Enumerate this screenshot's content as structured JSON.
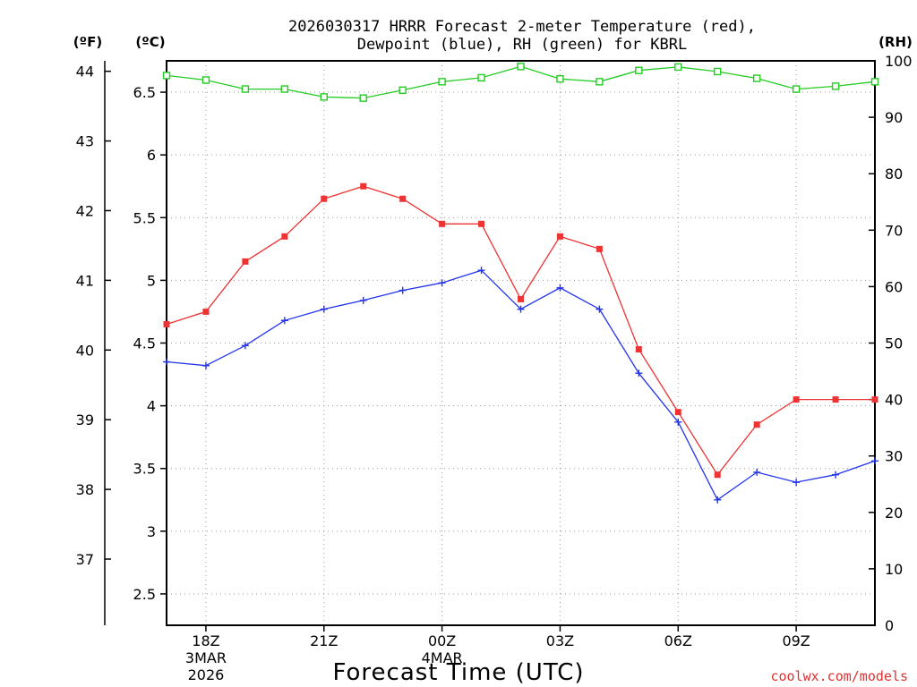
{
  "chart_data": {
    "type": "line",
    "title_lines": [
      "2026030317 HRRR Forecast 2-meter Temperature (red),",
      "Dewpoint (blue), RH (green) for KBRL"
    ],
    "xlabel": "Forecast Time (UTC)",
    "credit": "coolwx.com/models",
    "unit_labels": {
      "fahrenheit": "(ºF)",
      "celsius": "(ºC)",
      "rh": "(RH)"
    },
    "x_hours": [
      17,
      18,
      19,
      20,
      21,
      22,
      23,
      24,
      25,
      26,
      27,
      28,
      29,
      30,
      31,
      32,
      33,
      34,
      35
    ],
    "xlim": [
      17,
      35
    ],
    "x_ticks": [
      {
        "hour": 18,
        "label": "18Z",
        "sub1": "3MAR",
        "sub2": "2026"
      },
      {
        "hour": 21,
        "label": "21Z",
        "sub1": "",
        "sub2": ""
      },
      {
        "hour": 24,
        "label": "00Z",
        "sub1": "4MAR",
        "sub2": ""
      },
      {
        "hour": 27,
        "label": "03Z",
        "sub1": "",
        "sub2": ""
      },
      {
        "hour": 30,
        "label": "06Z",
        "sub1": "",
        "sub2": ""
      },
      {
        "hour": 33,
        "label": "09Z",
        "sub1": "",
        "sub2": ""
      }
    ],
    "celsius_axis": {
      "lim": [
        2.25,
        6.75
      ],
      "ticks": [
        2.5,
        3,
        3.5,
        4,
        4.5,
        5,
        5.5,
        6,
        6.5
      ],
      "tick_labels": [
        "2.5",
        "3",
        "3.5",
        "4",
        "4.5",
        "5",
        "5.5",
        "6",
        "6.5"
      ]
    },
    "fahrenheit_axis": {
      "ticks": [
        37,
        38,
        39,
        40,
        41,
        42,
        43,
        44
      ],
      "tick_labels": [
        "37",
        "38",
        "39",
        "40",
        "41",
        "42",
        "43",
        "44"
      ]
    },
    "rh_axis": {
      "lim": [
        0,
        100
      ],
      "ticks": [
        0,
        10,
        20,
        30,
        40,
        50,
        60,
        70,
        80,
        90,
        100
      ],
      "tick_labels": [
        "0",
        "10",
        "20",
        "30",
        "40",
        "50",
        "60",
        "70",
        "80",
        "90",
        "100"
      ]
    },
    "grid": true,
    "series": [
      {
        "name": "Temperature",
        "axis": "celsius",
        "color": "#ee3333",
        "marker": "filled-square",
        "values": [
          4.65,
          4.75,
          5.15,
          5.35,
          5.65,
          5.75,
          5.65,
          5.45,
          5.45,
          4.85,
          5.35,
          5.25,
          4.45,
          3.95,
          3.45,
          3.85,
          4.05,
          4.05,
          4.05
        ]
      },
      {
        "name": "Dewpoint",
        "axis": "celsius",
        "color": "#2233ee",
        "marker": "plus",
        "values": [
          4.35,
          4.32,
          4.48,
          4.68,
          4.77,
          4.84,
          4.92,
          4.98,
          5.08,
          4.77,
          4.94,
          4.77,
          4.26,
          3.87,
          3.25,
          3.47,
          3.39,
          3.45,
          3.56
        ]
      },
      {
        "name": "RH",
        "axis": "rh",
        "color": "#22cc22",
        "marker": "open-square",
        "values": [
          97.4,
          96.6,
          95.0,
          95.0,
          93.6,
          93.4,
          94.8,
          96.3,
          97.0,
          99.0,
          96.8,
          96.3,
          98.3,
          98.9,
          98.1,
          96.9,
          95.0,
          95.5,
          96.3
        ]
      }
    ]
  }
}
